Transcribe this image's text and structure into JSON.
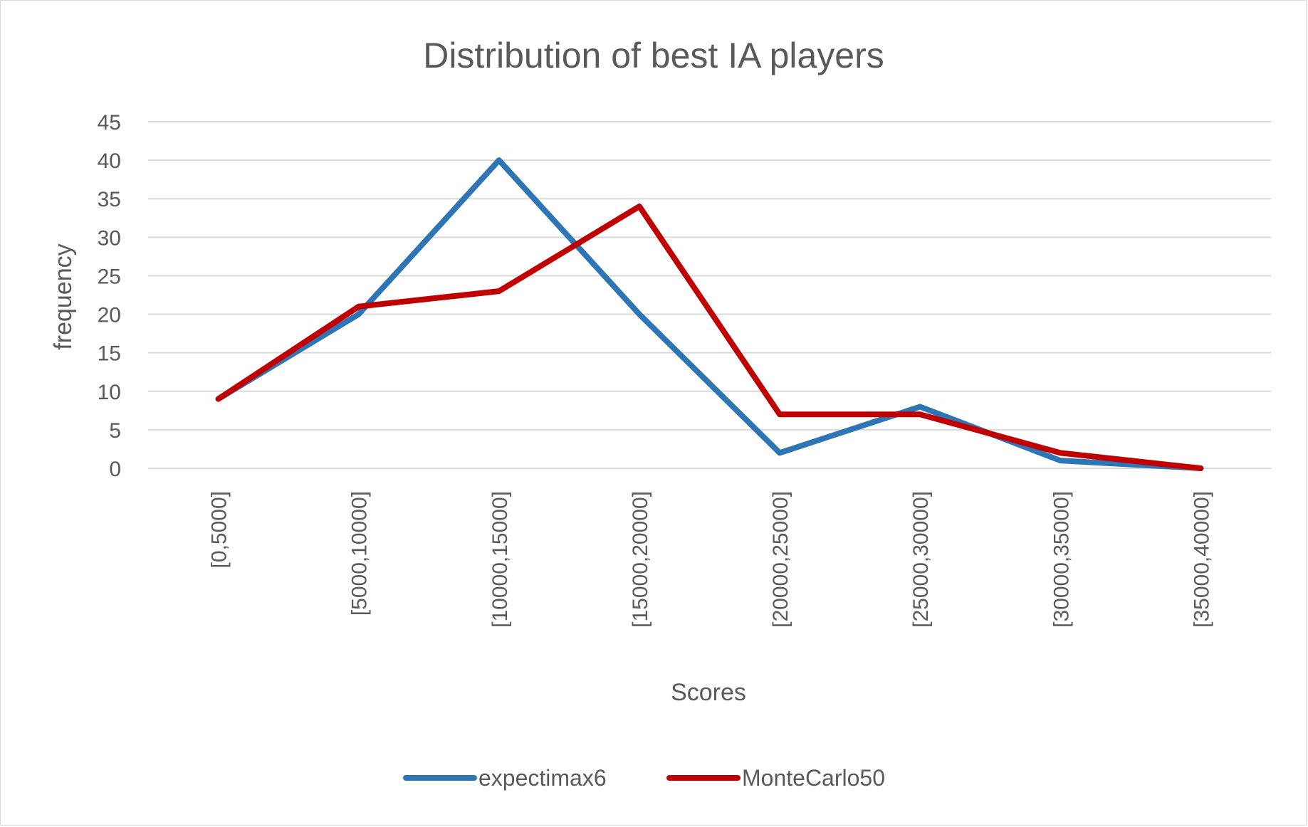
{
  "chart_data": {
    "type": "line",
    "title": "Distribution of best IA players",
    "xlabel": "Scores",
    "ylabel": "frequency",
    "categories": [
      "[0,5000]",
      "[5000,10000]",
      "[10000,15000]",
      "[15000,20000]",
      "[20000,25000]",
      "[25000,30000]",
      "[30000,35000]",
      "[35000,40000]"
    ],
    "series": [
      {
        "name": "expectimax6",
        "color": "#2e75b6",
        "values": [
          9,
          20,
          40,
          20,
          2,
          8,
          1,
          0
        ]
      },
      {
        "name": "MonteCarlo50",
        "color": "#c00000",
        "values": [
          9,
          21,
          23,
          34,
          7,
          7,
          2,
          0
        ]
      }
    ],
    "ylim": [
      0,
      45
    ],
    "yticks": [
      0,
      5,
      10,
      15,
      20,
      25,
      30,
      35,
      40,
      45
    ],
    "grid": true,
    "legend_position": "bottom"
  }
}
